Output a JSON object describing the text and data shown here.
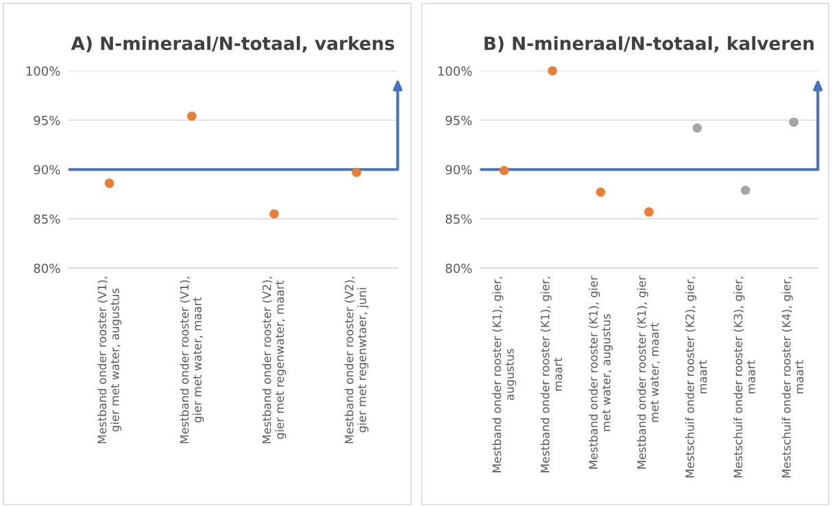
{
  "chart_data": [
    {
      "type": "scatter",
      "title": "A) N-mineraal/N-totaal, varkens",
      "categories": [
        "Mestband onder rooster (V1),\ngier met water, augustus",
        "Mestband onder rooster (V1),\ngier met water, maart",
        "Mestband onder rooster (V2),\ngier met regenwater, maart",
        "Mestband onder rooster (V2),\ngier met regenwtaer, juni"
      ],
      "values": [
        88.6,
        95.4,
        85.5,
        89.7
      ],
      "colors": [
        "#ed7d31",
        "#ed7d31",
        "#ed7d31",
        "#ed7d31"
      ],
      "marker": "circle",
      "ylim": [
        80,
        100
      ],
      "yticks": [
        {
          "value": 80,
          "label": "80%"
        },
        {
          "value": 85,
          "label": "85%"
        },
        {
          "value": 90,
          "label": "90%"
        },
        {
          "value": 95,
          "label": "95%"
        },
        {
          "value": 100,
          "label": "100%"
        }
      ],
      "grid": "y",
      "ref_lines": [
        {
          "axis": "y",
          "value": 90,
          "color": "#4472c4"
        }
      ]
    },
    {
      "type": "scatter",
      "title": "B) N-mineraal/N-totaal, kalveren",
      "categories": [
        "Mestband onder rooster (K1), gier,\naugustus",
        "Mestband onder rooster (K1), gier,\nmaart",
        "Mestband onder rooster (K1), gier\nmet water, augustus",
        "Mestband onder rooster (K1), gier\nmet water, maart",
        "Mestschuif onder rooster (K2), gier,\nmaart",
        "Mestschuif onder rooster (K3), gier,\nmaart",
        "Mestschuif onder rooster (K4), gier,\nmaart"
      ],
      "values": [
        89.9,
        100,
        87.7,
        85.7,
        94.2,
        87.9,
        94.8
      ],
      "colors": [
        "#ed7d31",
        "#ed7d31",
        "#ed7d31",
        "#ed7d31",
        "#a5a5a5",
        "#a5a5a5",
        "#a5a5a5"
      ],
      "marker": "circle",
      "ylim": [
        80,
        100
      ],
      "yticks": [
        {
          "value": 80,
          "label": "80%"
        },
        {
          "value": 85,
          "label": "85%"
        },
        {
          "value": 90,
          "label": "90%"
        },
        {
          "value": 95,
          "label": "95%"
        },
        {
          "value": 100,
          "label": "100%"
        }
      ],
      "grid": "y",
      "ref_lines": [
        {
          "axis": "y",
          "value": 90,
          "color": "#4472c4"
        }
      ]
    }
  ]
}
